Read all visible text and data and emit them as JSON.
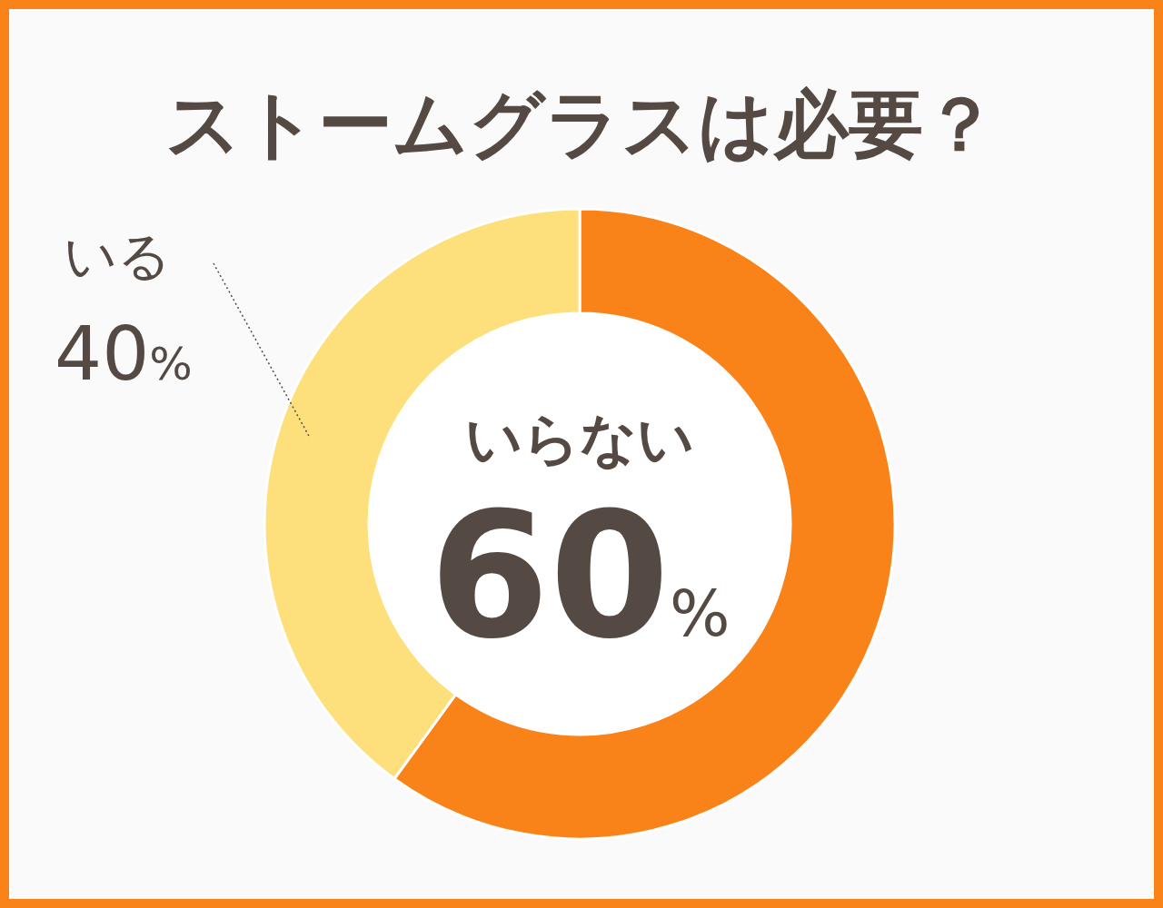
{
  "chart_data": {
    "type": "donut",
    "title": "ストームグラスは必要？",
    "categories": [
      "いらない",
      "いる"
    ],
    "values": [
      60,
      40
    ],
    "colors": [
      "#f98319",
      "#fde07c"
    ],
    "value_labels": [
      "60%",
      "40%"
    ]
  }
}
